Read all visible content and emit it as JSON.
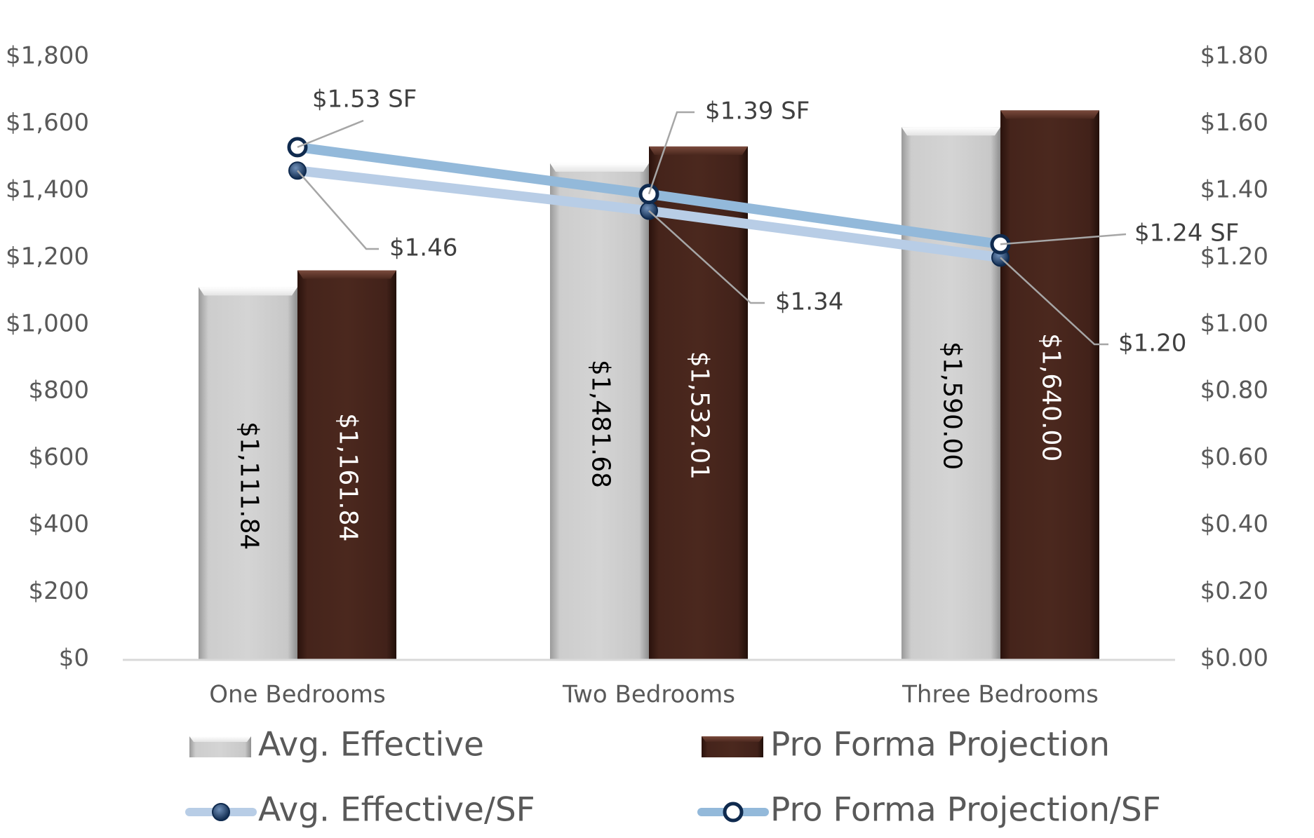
{
  "chart_data": {
    "type": "bar",
    "categories": [
      "One Bedrooms",
      "Two Bedrooms",
      "Three Bedrooms"
    ],
    "y_left": {
      "ylim": [
        0,
        1800
      ],
      "ticks": [
        0,
        200,
        400,
        600,
        800,
        1000,
        1200,
        1400,
        1600,
        1800
      ],
      "tick_labels": [
        "$0",
        "$200",
        "$400",
        "$600",
        "$800",
        "$1,000",
        "$1,200",
        "$1,400",
        "$1,600",
        "$1,800"
      ]
    },
    "y_right": {
      "ylim": [
        0,
        1.8
      ],
      "ticks": [
        0,
        0.2,
        0.4,
        0.6,
        0.8,
        1.0,
        1.2,
        1.4,
        1.6,
        1.8
      ],
      "tick_labels": [
        "$0.00",
        "$0.20",
        "$0.40",
        "$0.60",
        "$0.80",
        "$1.00",
        "$1.20",
        "$1.40",
        "$1.60",
        "$1.80"
      ]
    },
    "series": [
      {
        "name": "Avg. Effective",
        "kind": "bar",
        "axis": "left",
        "values": [
          1111.84,
          1481.68,
          1590.0
        ],
        "labels": [
          "$1,111.84",
          "$1,481.68",
          "$1,590.00"
        ],
        "color": "#cfcfcf",
        "label_color": "#000000"
      },
      {
        "name": "Pro Forma Projection",
        "kind": "bar",
        "axis": "left",
        "values": [
          1161.84,
          1532.01,
          1640.0
        ],
        "labels": [
          "$1,161.84",
          "$1,532.01",
          "$1,640.00"
        ],
        "color": "#45241b",
        "label_color": "#ffffff"
      },
      {
        "name": "Avg. Effective/SF",
        "kind": "line",
        "axis": "right",
        "values": [
          1.46,
          1.34,
          1.2
        ],
        "labels": [
          "$1.46",
          "$1.34",
          "$1.20"
        ],
        "color": "#b8cde6",
        "marker": "filled"
      },
      {
        "name": "Pro Forma Projection/SF",
        "kind": "line",
        "axis": "right",
        "values": [
          1.53,
          1.39,
          1.24
        ],
        "labels": [
          "$1.53 SF",
          "$1.39 SF",
          "$1.24 SF"
        ],
        "color": "#93b9da",
        "marker": "hollow"
      }
    ],
    "legend": [
      "Avg. Effective",
      "Pro Forma Projection",
      "Avg. Effective/SF",
      "Pro Forma Projection/SF"
    ],
    "legend_position": "bottom",
    "grid": false
  }
}
